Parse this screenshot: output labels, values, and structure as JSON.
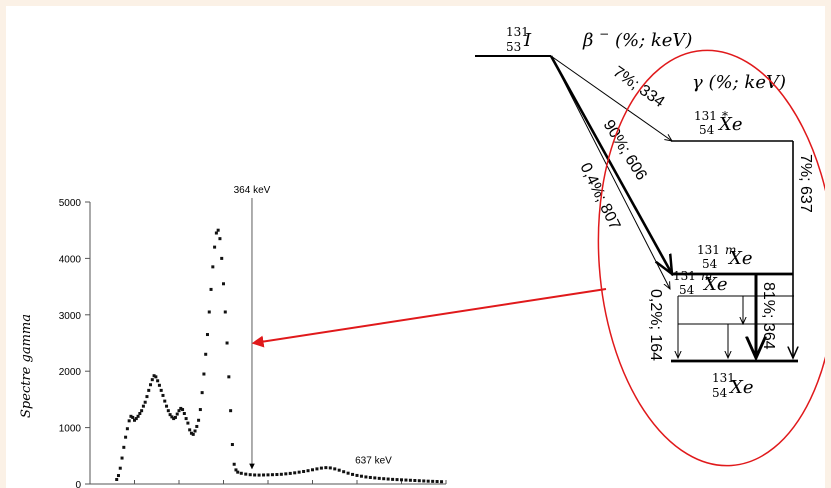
{
  "decay_scheme": {
    "parent": {
      "mass": "131",
      "atomic_number": "53",
      "symbol": "I"
    },
    "beta_header": {
      "greek": "β",
      "sup": "−",
      "units": "(%; keV)"
    },
    "gamma_header": {
      "greek": "γ",
      "units": "(%; keV)"
    },
    "beta_branches": [
      {
        "label": "7%; 334"
      },
      {
        "label": "90%; 606"
      },
      {
        "label": "0,4%; 807"
      }
    ],
    "levels": [
      {
        "mass": "131",
        "mark": "*",
        "atomic_number": "54",
        "symbol": "Xe"
      },
      {
        "mass": "131",
        "mark": "m",
        "atomic_number": "54",
        "symbol": "Xe"
      },
      {
        "mass": "131",
        "mark": "m",
        "atomic_number": "54",
        "symbol": "Xe"
      },
      {
        "mass": "131",
        "mark": "",
        "atomic_number": "54",
        "symbol": "Xe"
      }
    ],
    "gamma_transitions": [
      {
        "label": "7%; 637"
      },
      {
        "label": "81%; 364"
      },
      {
        "label": "0,2%; 164"
      }
    ],
    "colors": {
      "ellipse": "#e0191b",
      "arrow": "#e0191b",
      "lines": "#000000"
    }
  },
  "chart_data": {
    "type": "scatter",
    "ylabel": "Spectre gamma",
    "xlabel": "",
    "ylim": [
      0,
      5000
    ],
    "yticks": [
      "0",
      "1000",
      "2000",
      "3000",
      "4000",
      "5000"
    ],
    "annotations": [
      {
        "text": "364 keV",
        "x": 364
      },
      {
        "text": "637 keV",
        "x": 637
      }
    ],
    "points": [
      [
        60,
        80
      ],
      [
        64,
        150
      ],
      [
        68,
        280
      ],
      [
        72,
        460
      ],
      [
        76,
        650
      ],
      [
        80,
        830
      ],
      [
        84,
        980
      ],
      [
        88,
        1120
      ],
      [
        92,
        1200
      ],
      [
        96,
        1180
      ],
      [
        100,
        1130
      ],
      [
        104,
        1160
      ],
      [
        108,
        1200
      ],
      [
        112,
        1250
      ],
      [
        116,
        1300
      ],
      [
        120,
        1380
      ],
      [
        124,
        1450
      ],
      [
        128,
        1550
      ],
      [
        132,
        1660
      ],
      [
        136,
        1760
      ],
      [
        140,
        1850
      ],
      [
        144,
        1920
      ],
      [
        148,
        1900
      ],
      [
        152,
        1830
      ],
      [
        156,
        1750
      ],
      [
        160,
        1660
      ],
      [
        164,
        1570
      ],
      [
        168,
        1470
      ],
      [
        172,
        1380
      ],
      [
        176,
        1300
      ],
      [
        180,
        1230
      ],
      [
        184,
        1190
      ],
      [
        188,
        1160
      ],
      [
        192,
        1180
      ],
      [
        196,
        1240
      ],
      [
        200,
        1300
      ],
      [
        204,
        1340
      ],
      [
        208,
        1320
      ],
      [
        212,
        1250
      ],
      [
        216,
        1160
      ],
      [
        220,
        1080
      ],
      [
        224,
        960
      ],
      [
        228,
        900
      ],
      [
        232,
        880
      ],
      [
        236,
        940
      ],
      [
        240,
        1020
      ],
      [
        244,
        1130
      ],
      [
        248,
        1320
      ],
      [
        252,
        1620
      ],
      [
        256,
        1950
      ],
      [
        260,
        2300
      ],
      [
        264,
        2650
      ],
      [
        268,
        3050
      ],
      [
        272,
        3450
      ],
      [
        276,
        3850
      ],
      [
        280,
        4200
      ],
      [
        284,
        4450
      ],
      [
        288,
        4500
      ],
      [
        292,
        4350
      ],
      [
        296,
        4000
      ],
      [
        300,
        3550
      ],
      [
        304,
        3050
      ],
      [
        308,
        2500
      ],
      [
        312,
        1900
      ],
      [
        316,
        1300
      ],
      [
        320,
        700
      ],
      [
        324,
        350
      ],
      [
        328,
        250
      ],
      [
        332,
        210
      ],
      [
        340,
        190
      ],
      [
        350,
        175
      ],
      [
        360,
        165
      ],
      [
        370,
        160
      ],
      [
        380,
        158
      ],
      [
        390,
        160
      ],
      [
        400,
        162
      ],
      [
        410,
        165
      ],
      [
        420,
        168
      ],
      [
        430,
        172
      ],
      [
        440,
        180
      ],
      [
        450,
        188
      ],
      [
        460,
        198
      ],
      [
        470,
        210
      ],
      [
        480,
        222
      ],
      [
        490,
        236
      ],
      [
        500,
        252
      ],
      [
        510,
        268
      ],
      [
        520,
        282
      ],
      [
        530,
        290
      ],
      [
        540,
        285
      ],
      [
        550,
        268
      ],
      [
        560,
        245
      ],
      [
        570,
        218
      ],
      [
        580,
        192
      ],
      [
        590,
        170
      ],
      [
        600,
        152
      ],
      [
        610,
        138
      ],
      [
        620,
        125
      ],
      [
        630,
        116
      ],
      [
        640,
        108
      ],
      [
        650,
        100
      ],
      [
        660,
        94
      ],
      [
        670,
        88
      ],
      [
        680,
        82
      ],
      [
        690,
        78
      ],
      [
        700,
        74
      ],
      [
        710,
        70
      ],
      [
        720,
        66
      ],
      [
        730,
        62
      ],
      [
        740,
        58
      ],
      [
        750,
        54
      ],
      [
        760,
        50
      ],
      [
        770,
        47
      ],
      [
        780,
        44
      ],
      [
        790,
        41
      ]
    ]
  }
}
